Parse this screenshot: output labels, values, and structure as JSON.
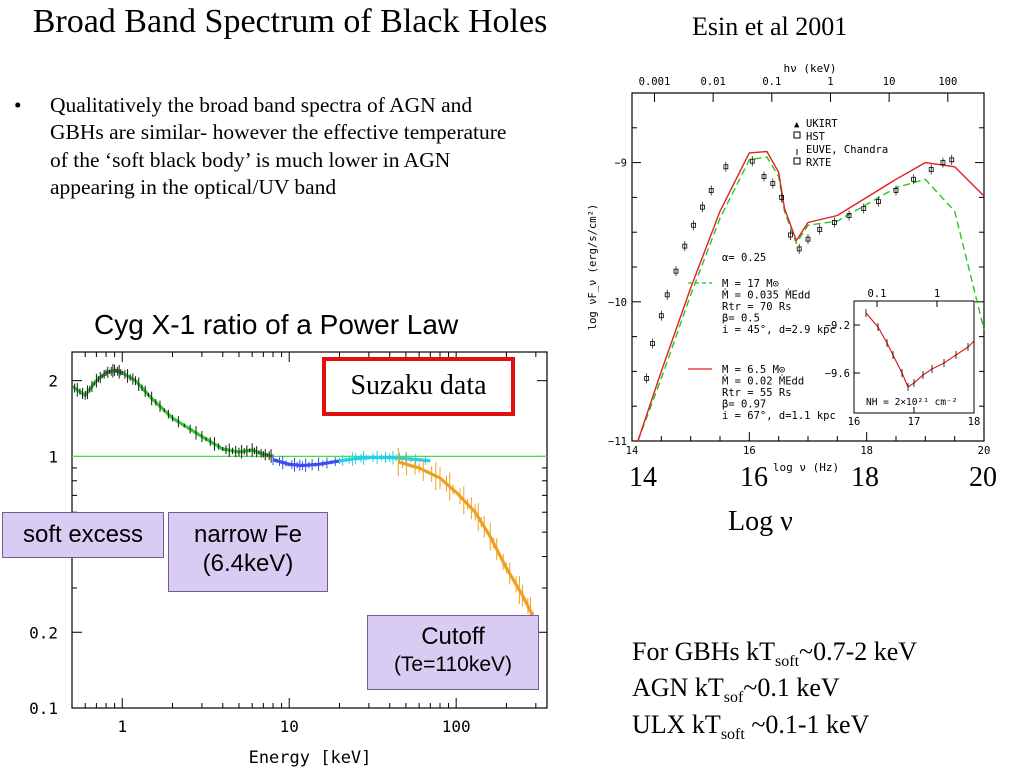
{
  "slide": {
    "title": "Broad Band Spectrum of Black Holes",
    "bullet": "Qualitatively the broad band spectra of AGN and GBHs are similar- however the effective temperature of the ‘soft black body’ is much lower in AGN appearing in the optical/UV band",
    "right_heading": "Esin et al 2001",
    "left_plot_title": "Cyg X-1 ratio of a Power Law",
    "log_nu_axis": {
      "ticks": [
        "14",
        "16",
        "18",
        "20"
      ],
      "label": "Log ν"
    },
    "kt_lines": [
      {
        "prefix": "For GBHs kT",
        "sub": "soft",
        "suffix": "~0.7-2 keV"
      },
      {
        "prefix": "AGN kT",
        "sub": "sof",
        "suffix": "~0.1 keV"
      },
      {
        "prefix": "ULX kT",
        "sub": "soft",
        "suffix": " ~0.1-1  keV"
      }
    ],
    "boxes": {
      "suzaku": "Suzaku data",
      "soft_excess": "soft excess",
      "narrow_fe_line1": "narrow Fe",
      "narrow_fe_line2": "(6.4keV)",
      "cutoff_line1": "Cutoff",
      "cutoff_line2": "(Te=110keV)"
    }
  },
  "chart_data": [
    {
      "type": "line",
      "title": "Cyg X-1 ratio of a Power Law",
      "xlabel": "Energy [keV]",
      "ylabel": "",
      "xscale": "log",
      "yscale": "log",
      "xlim": [
        0.5,
        350
      ],
      "ylim": [
        0.1,
        2.6
      ],
      "xticks": [
        1,
        10,
        100
      ],
      "xtick_labels": [
        "1",
        "10",
        "100"
      ],
      "yticks": [
        0.1,
        0.2,
        1,
        2
      ],
      "ytick_labels": [
        "0.1",
        "0.2",
        "1",
        "2"
      ],
      "reference_line": {
        "y": 1,
        "color": "#46e046"
      },
      "series": [
        {
          "color": "#36c836",
          "x": [
            0.5,
            0.6,
            0.7,
            0.8,
            0.9,
            1.0,
            1.2,
            1.5,
            2,
            3,
            4,
            5,
            6,
            7,
            8
          ],
          "y": [
            1.9,
            1.75,
            2.0,
            2.15,
            2.2,
            2.15,
            2.0,
            1.7,
            1.42,
            1.2,
            1.07,
            1.04,
            1.06,
            1.02,
            1.0
          ]
        },
        {
          "color": "#3a4ef0",
          "x": [
            8,
            10,
            12,
            15,
            20
          ],
          "y": [
            0.97,
            0.93,
            0.92,
            0.93,
            0.96
          ]
        },
        {
          "color": "#22d0e8",
          "x": [
            20,
            25,
            30,
            40,
            50,
            70
          ],
          "y": [
            0.96,
            0.98,
            0.99,
            0.99,
            0.98,
            0.96
          ]
        },
        {
          "color": "#f0a020",
          "x": [
            45,
            60,
            80,
            100,
            130,
            160,
            200,
            250,
            300
          ],
          "y": [
            0.95,
            0.9,
            0.82,
            0.72,
            0.6,
            0.48,
            0.36,
            0.28,
            0.22
          ]
        }
      ]
    },
    {
      "type": "line",
      "title": "",
      "xlabel": "log ν (Hz)",
      "ylabel": "log νF_ν (erg/s/cm²)",
      "top_axis_label": "hν (keV)",
      "xlim": [
        14,
        20
      ],
      "ylim": [
        -11,
        -8.5
      ],
      "xticks": [
        14,
        16,
        18,
        20
      ],
      "yticks": [
        -11,
        -10,
        -9
      ],
      "top_ticks": [
        "0.001",
        "0.01",
        "0.1",
        "1",
        "10",
        "100"
      ],
      "legend": [
        "UKIRT",
        "HST",
        "EUVE, Chandra",
        "RXTE"
      ],
      "legend_position": "top-right",
      "annotations": [
        "α= 0.25"
      ],
      "models": [
        {
          "color": "#22c822",
          "style": "dashed",
          "params": [
            "M = 17 M⊙",
            "Ṁ = 0.035 ṀEdd",
            "Rtr = 70 Rs",
            "β= 0.5",
            "i = 45°, d=2.9 kpc"
          ],
          "x": [
            14.1,
            14.5,
            15,
            15.5,
            16,
            16.3,
            16.5,
            16.6,
            16.8,
            17,
            17.5,
            18,
            18.5,
            19,
            19.5,
            20
          ],
          "y": [
            -11,
            -10.55,
            -9.95,
            -9.4,
            -8.98,
            -8.96,
            -9.1,
            -9.35,
            -9.58,
            -9.45,
            -9.42,
            -9.3,
            -9.18,
            -9.12,
            -9.35,
            -10.2
          ]
        },
        {
          "color": "#e02020",
          "style": "solid",
          "params": [
            "M = 6.5 M⊙",
            "Ṁ = 0.02 ṀEdd",
            "Rtr = 55 Rs",
            "β= 0.97",
            "i = 67°, d=1.1 kpc"
          ],
          "x": [
            14.1,
            14.5,
            15,
            15.5,
            16,
            16.3,
            16.5,
            16.6,
            16.8,
            17,
            17.5,
            18,
            18.5,
            19,
            19.5,
            20
          ],
          "y": [
            -11,
            -10.5,
            -9.9,
            -9.35,
            -8.93,
            -8.92,
            -9.07,
            -9.33,
            -9.56,
            -9.43,
            -9.38,
            -9.25,
            -9.12,
            -9.0,
            -9.03,
            -9.24
          ]
        }
      ],
      "inset": {
        "xlim": [
          16,
          18
        ],
        "yticks": [
          "-9.2",
          "-9.6"
        ],
        "xticks": [
          "16",
          "17",
          "18"
        ],
        "top_ticks": [
          "0.1",
          "1"
        ],
        "annotation": "NH = 2×10²¹ cm⁻²"
      }
    }
  ]
}
